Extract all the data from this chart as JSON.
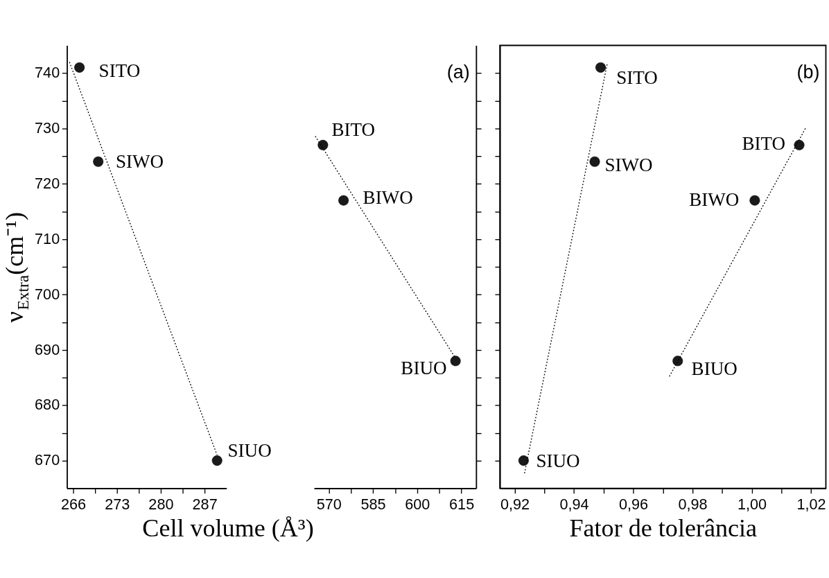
{
  "chart_data": [
    {
      "type": "scatter",
      "xlabel": "Cell volume (Å³)",
      "ylabel": "ν$_{Extra}$(cm⁻¹)",
      "xlim": [
        265,
        290.5
      ],
      "ylim": [
        665,
        745
      ],
      "xticks": [
        266,
        {
          "value": 269.5,
          "label": null
        },
        273,
        {
          "value": 276.5,
          "label": null
        },
        280,
        {
          "value": 283.5,
          "label": null
        },
        287
      ],
      "yticks": [
        670,
        {
          "value": 675,
          "label": null
        },
        680,
        {
          "value": 685,
          "label": null
        },
        690,
        {
          "value": 695,
          "label": null
        },
        700,
        {
          "value": 705,
          "label": null
        },
        710,
        {
          "value": 715,
          "label": null
        },
        720,
        {
          "value": 725,
          "label": null
        },
        730,
        {
          "value": 735,
          "label": null
        },
        740
      ],
      "series": [
        {
          "color": "#1a1a1a",
          "x": [
            267,
            270,
            289
          ],
          "values": [
            741,
            724,
            670
          ]
        },
        {
          "type": "line",
          "marker": "none",
          "color": "#000000",
          "line_style": "dotted",
          "x": [
            265.4,
            289
          ],
          "values": [
            742,
            671
          ]
        }
      ],
      "annotations": [
        {
          "text": "SITO",
          "x": 267,
          "y": 741
        },
        {
          "text": "SIWO",
          "x": 270,
          "y": 724
        },
        {
          "text": "SIUO",
          "x": 289,
          "y": 670
        }
      ],
      "grid": false,
      "marker": "circle"
    },
    {
      "type": "scatter",
      "xlim": [
        565,
        620
      ],
      "ylim": [
        665,
        745
      ],
      "tick_labels": "x",
      "xticks": [
        570,
        {
          "value": 577.5,
          "label": null
        },
        585,
        {
          "value": 592.5,
          "label": null
        },
        600,
        {
          "value": 607.5,
          "label": null
        },
        615
      ],
      "series": [
        {
          "color": "#1a1a1a",
          "x": [
            568,
            575,
            613
          ],
          "values": [
            727,
            717,
            688
          ]
        },
        {
          "type": "line",
          "marker": "none",
          "color": "#000000",
          "line_style": "dotted",
          "x": [
            565.4,
            613
          ],
          "values": [
            728.6,
            688.5
          ]
        }
      ],
      "annotations": [
        "(a)",
        {
          "text": "BITO",
          "x": 568,
          "y": 727
        },
        {
          "text": "BIWO",
          "x": 575,
          "y": 717
        },
        {
          "text": "BIUO",
          "x": 613,
          "y": 688
        }
      ],
      "grid": false,
      "marker": "circle"
    },
    {
      "type": "scatter",
      "xlabel": "Fator de tolerância",
      "xlim": [
        0.915,
        1.025
      ],
      "ylim": [
        665,
        745
      ],
      "tick_labels": "x",
      "xticks": [
        {
          "value": 0.92,
          "label": "0,92"
        },
        {
          "value": 0.93,
          "label": null
        },
        {
          "value": 0.94,
          "label": "0,94"
        },
        {
          "value": 0.95,
          "label": null
        },
        {
          "value": 0.96,
          "label": "0,96"
        },
        {
          "value": 0.97,
          "label": null
        },
        {
          "value": 0.98,
          "label": "0,98"
        },
        {
          "value": 0.99,
          "label": null
        },
        {
          "value": 1.0,
          "label": "1,00"
        },
        {
          "value": 1.01,
          "label": null
        },
        {
          "value": 1.02,
          "label": "1,02"
        }
      ],
      "series": [
        {
          "color": "#1a1a1a",
          "x": [
            0.949,
            0.947,
            0.923,
            1.016,
            1.001,
            0.975
          ],
          "values": [
            741,
            724,
            670,
            727,
            717,
            688
          ]
        },
        {
          "type": "line",
          "marker": "none",
          "color": "#000000",
          "line_style": "dotted",
          "x": [
            0.9233,
            0.9513
          ],
          "values": [
            667.7,
            741.9
          ]
        },
        {
          "type": "line",
          "marker": "none",
          "color": "#000000",
          "line_style": "dotted",
          "x": [
            0.9722,
            1.0183
          ],
          "values": [
            685.2,
            730.2
          ]
        }
      ],
      "annotations": [
        "(b)",
        {
          "text": "SITO",
          "x": 0.949,
          "y": 741
        },
        {
          "text": "SIWO",
          "x": 0.947,
          "y": 724
        },
        {
          "text": "SIUO",
          "x": 0.923,
          "y": 670
        },
        {
          "text": "BITO",
          "x": 1.016,
          "y": 727
        },
        {
          "text": "BIWO",
          "x": 1.001,
          "y": 717
        },
        {
          "text": "BIUO",
          "x": 0.975,
          "y": 688
        }
      ],
      "grid": false,
      "marker": "circle"
    }
  ]
}
